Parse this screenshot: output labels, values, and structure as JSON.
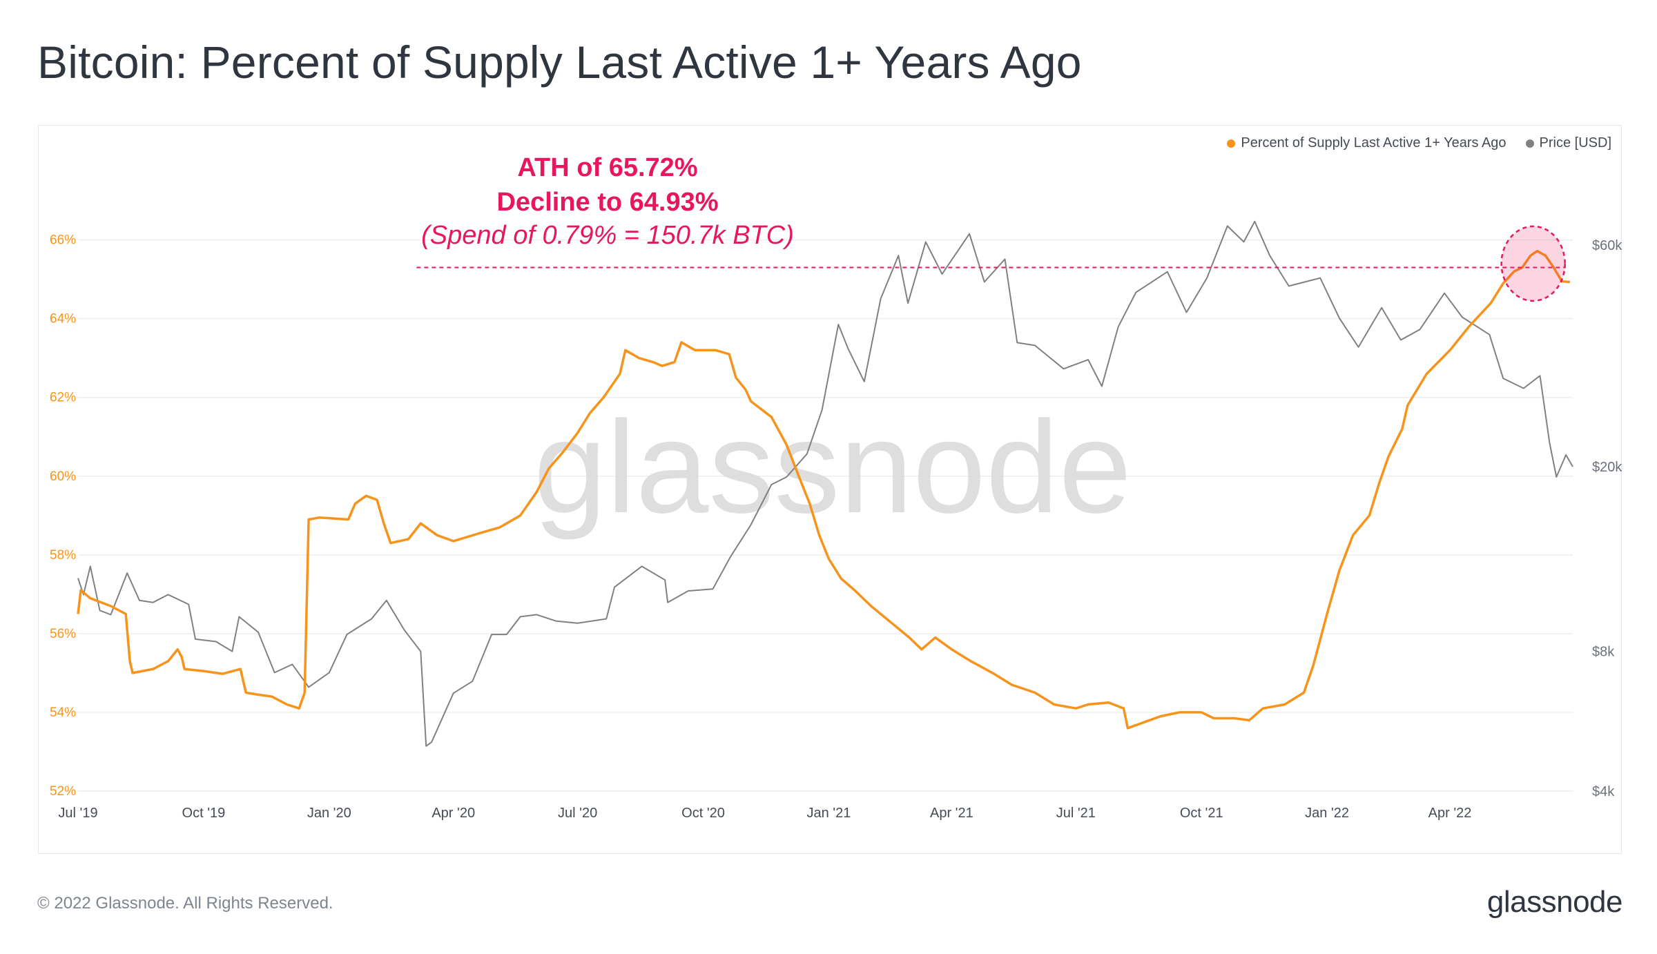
{
  "title": "Bitcoin: Percent of Supply Last Active 1+ Years Ago",
  "footer": {
    "copyright": "© 2022 Glassnode. All Rights Reserved.",
    "logo": "glassnode"
  },
  "watermark": "glassnode",
  "legend": [
    {
      "label": "Percent of Supply Last Active 1+ Years Ago",
      "color": "#f7931a"
    },
    {
      "label": "Price [USD]",
      "color": "#808080"
    }
  ],
  "annotation": {
    "line1": "ATH of 65.72%",
    "line2": "Decline to 64.93%",
    "line3": "(Spend of 0.79% = 150.7k BTC)",
    "color": "#e8175d"
  },
  "chart_data": {
    "type": "line",
    "x_type": "date",
    "xlim": [
      "2019-07-01",
      "2022-06-30"
    ],
    "x_ticks": [
      {
        "date": "2019-07-01",
        "label": "Jul '19"
      },
      {
        "date": "2019-10-01",
        "label": "Oct '19"
      },
      {
        "date": "2020-01-01",
        "label": "Jan '20"
      },
      {
        "date": "2020-04-01",
        "label": "Apr '20"
      },
      {
        "date": "2020-07-01",
        "label": "Jul '20"
      },
      {
        "date": "2020-10-01",
        "label": "Oct '20"
      },
      {
        "date": "2021-01-01",
        "label": "Jan '21"
      },
      {
        "date": "2021-04-01",
        "label": "Apr '21"
      },
      {
        "date": "2021-07-01",
        "label": "Jul '21"
      },
      {
        "date": "2021-10-01",
        "label": "Oct '21"
      },
      {
        "date": "2022-01-01",
        "label": "Jan '22"
      },
      {
        "date": "2022-04-01",
        "label": "Apr '22"
      }
    ],
    "y_left": {
      "ylim": [
        52,
        66.8
      ],
      "ticks": [
        52,
        54,
        56,
        58,
        60,
        62,
        64,
        66
      ],
      "tick_labels": [
        "52%",
        "54%",
        "56%",
        "58%",
        "60%",
        "62%",
        "64%",
        "66%"
      ],
      "color": "#f7931a"
    },
    "y_right": {
      "scale": "log",
      "ylim": [
        4000,
        72000
      ],
      "ticks": [
        4000,
        8000,
        20000,
        60000
      ],
      "tick_labels": [
        "$4k",
        "$8k",
        "$20k",
        "$60k"
      ]
    },
    "grid": true,
    "reference_line": {
      "value": 65.3,
      "style": "dashed",
      "color": "#e8175d",
      "x_start": "2020-03-05"
    },
    "highlight": {
      "center_date": "2022-06-01",
      "center_value": 65.4,
      "color": "#e8175d"
    },
    "series": [
      {
        "name": "Percent of Supply Last Active 1+ Years Ago",
        "axis": "left",
        "color": "#f7931a",
        "points": [
          [
            "2019-07-01",
            56.5
          ],
          [
            "2019-07-03",
            57.1
          ],
          [
            "2019-07-10",
            56.9
          ],
          [
            "2019-07-25",
            56.7
          ],
          [
            "2019-08-05",
            56.5
          ],
          [
            "2019-08-08",
            55.3
          ],
          [
            "2019-08-10",
            55.0
          ],
          [
            "2019-08-25",
            55.1
          ],
          [
            "2019-09-05",
            55.3
          ],
          [
            "2019-09-12",
            55.6
          ],
          [
            "2019-09-15",
            55.4
          ],
          [
            "2019-09-17",
            55.1
          ],
          [
            "2019-10-01",
            55.05
          ],
          [
            "2019-10-15",
            54.98
          ],
          [
            "2019-10-28",
            55.1
          ],
          [
            "2019-11-01",
            54.5
          ],
          [
            "2019-11-10",
            54.45
          ],
          [
            "2019-11-20",
            54.4
          ],
          [
            "2019-12-01",
            54.2
          ],
          [
            "2019-12-10",
            54.1
          ],
          [
            "2019-12-14",
            54.5
          ],
          [
            "2019-12-17",
            58.9
          ],
          [
            "2019-12-25",
            58.95
          ],
          [
            "2020-01-15",
            58.9
          ],
          [
            "2020-01-20",
            59.3
          ],
          [
            "2020-01-28",
            59.5
          ],
          [
            "2020-02-05",
            59.4
          ],
          [
            "2020-02-10",
            58.8
          ],
          [
            "2020-02-15",
            58.3
          ],
          [
            "2020-02-28",
            58.4
          ],
          [
            "2020-03-08",
            58.8
          ],
          [
            "2020-03-20",
            58.5
          ],
          [
            "2020-04-01",
            58.35
          ],
          [
            "2020-04-20",
            58.55
          ],
          [
            "2020-05-05",
            58.7
          ],
          [
            "2020-05-20",
            59.0
          ],
          [
            "2020-06-01",
            59.6
          ],
          [
            "2020-06-10",
            60.2
          ],
          [
            "2020-06-20",
            60.6
          ],
          [
            "2020-07-01",
            61.1
          ],
          [
            "2020-07-10",
            61.6
          ],
          [
            "2020-07-20",
            62.0
          ],
          [
            "2020-08-01",
            62.6
          ],
          [
            "2020-08-05",
            63.2
          ],
          [
            "2020-08-15",
            63.0
          ],
          [
            "2020-08-25",
            62.9
          ],
          [
            "2020-09-01",
            62.8
          ],
          [
            "2020-09-10",
            62.9
          ],
          [
            "2020-09-15",
            63.4
          ],
          [
            "2020-09-25",
            63.2
          ],
          [
            "2020-10-10",
            63.2
          ],
          [
            "2020-10-20",
            63.1
          ],
          [
            "2020-10-25",
            62.5
          ],
          [
            "2020-11-01",
            62.2
          ],
          [
            "2020-11-05",
            61.9
          ],
          [
            "2020-11-20",
            61.5
          ],
          [
            "2020-12-01",
            60.8
          ],
          [
            "2020-12-10",
            60.0
          ],
          [
            "2020-12-18",
            59.3
          ],
          [
            "2020-12-25",
            58.5
          ],
          [
            "2021-01-01",
            57.9
          ],
          [
            "2021-01-10",
            57.4
          ],
          [
            "2021-01-20",
            57.1
          ],
          [
            "2021-02-01",
            56.7
          ],
          [
            "2021-02-15",
            56.3
          ],
          [
            "2021-03-01",
            55.9
          ],
          [
            "2021-03-10",
            55.6
          ],
          [
            "2021-03-20",
            55.9
          ],
          [
            "2021-04-01",
            55.6
          ],
          [
            "2021-04-15",
            55.3
          ],
          [
            "2021-05-01",
            55.0
          ],
          [
            "2021-05-15",
            54.7
          ],
          [
            "2021-06-01",
            54.5
          ],
          [
            "2021-06-15",
            54.2
          ],
          [
            "2021-07-01",
            54.1
          ],
          [
            "2021-07-10",
            54.2
          ],
          [
            "2021-07-25",
            54.25
          ],
          [
            "2021-08-05",
            54.1
          ],
          [
            "2021-08-08",
            53.6
          ],
          [
            "2021-08-20",
            53.75
          ],
          [
            "2021-09-01",
            53.9
          ],
          [
            "2021-09-15",
            54.0
          ],
          [
            "2021-10-01",
            54.0
          ],
          [
            "2021-10-10",
            53.85
          ],
          [
            "2021-10-25",
            53.85
          ],
          [
            "2021-11-05",
            53.8
          ],
          [
            "2021-11-15",
            54.1
          ],
          [
            "2021-12-01",
            54.2
          ],
          [
            "2021-12-15",
            54.5
          ],
          [
            "2021-12-22",
            55.2
          ],
          [
            "2022-01-01",
            56.5
          ],
          [
            "2022-01-10",
            57.6
          ],
          [
            "2022-01-20",
            58.5
          ],
          [
            "2022-02-01",
            59.0
          ],
          [
            "2022-02-08",
            59.8
          ],
          [
            "2022-02-15",
            60.5
          ],
          [
            "2022-02-25",
            61.2
          ],
          [
            "2022-03-01",
            61.8
          ],
          [
            "2022-03-15",
            62.6
          ],
          [
            "2022-04-01",
            63.2
          ],
          [
            "2022-04-15",
            63.8
          ],
          [
            "2022-05-01",
            64.4
          ],
          [
            "2022-05-10",
            64.9
          ],
          [
            "2022-05-18",
            65.2
          ],
          [
            "2022-05-24",
            65.3
          ],
          [
            "2022-05-30",
            65.6
          ],
          [
            "2022-06-04",
            65.72
          ],
          [
            "2022-06-10",
            65.6
          ],
          [
            "2022-06-16",
            65.3
          ],
          [
            "2022-06-22",
            64.95
          ],
          [
            "2022-06-28",
            64.93
          ]
        ]
      },
      {
        "name": "Price [USD]",
        "axis": "right",
        "color": "#808080",
        "points": [
          [
            "2019-07-01",
            11500
          ],
          [
            "2019-07-05",
            10600
          ],
          [
            "2019-07-10",
            12200
          ],
          [
            "2019-07-17",
            9800
          ],
          [
            "2019-07-25",
            9600
          ],
          [
            "2019-08-06",
            11800
          ],
          [
            "2019-08-15",
            10300
          ],
          [
            "2019-08-25",
            10200
          ],
          [
            "2019-09-05",
            10600
          ],
          [
            "2019-09-20",
            10100
          ],
          [
            "2019-09-25",
            8500
          ],
          [
            "2019-10-10",
            8400
          ],
          [
            "2019-10-22",
            8000
          ],
          [
            "2019-10-27",
            9500
          ],
          [
            "2019-11-10",
            8800
          ],
          [
            "2019-11-22",
            7200
          ],
          [
            "2019-12-05",
            7500
          ],
          [
            "2019-12-17",
            6700
          ],
          [
            "2020-01-01",
            7200
          ],
          [
            "2020-01-14",
            8700
          ],
          [
            "2020-02-01",
            9400
          ],
          [
            "2020-02-12",
            10300
          ],
          [
            "2020-02-25",
            8900
          ],
          [
            "2020-03-08",
            8000
          ],
          [
            "2020-03-12",
            5000
          ],
          [
            "2020-03-16",
            5100
          ],
          [
            "2020-04-01",
            6500
          ],
          [
            "2020-04-15",
            6900
          ],
          [
            "2020-04-29",
            8700
          ],
          [
            "2020-05-10",
            8700
          ],
          [
            "2020-05-20",
            9500
          ],
          [
            "2020-06-01",
            9600
          ],
          [
            "2020-06-15",
            9300
          ],
          [
            "2020-07-01",
            9200
          ],
          [
            "2020-07-22",
            9400
          ],
          [
            "2020-07-28",
            11000
          ],
          [
            "2020-08-17",
            12200
          ],
          [
            "2020-09-03",
            11400
          ],
          [
            "2020-09-05",
            10200
          ],
          [
            "2020-09-20",
            10800
          ],
          [
            "2020-10-08",
            10900
          ],
          [
            "2020-10-21",
            12800
          ],
          [
            "2020-11-05",
            15000
          ],
          [
            "2020-11-20",
            18300
          ],
          [
            "2020-12-01",
            19000
          ],
          [
            "2020-12-16",
            21300
          ],
          [
            "2020-12-27",
            26500
          ],
          [
            "2021-01-08",
            40500
          ],
          [
            "2021-01-15",
            36000
          ],
          [
            "2021-01-27",
            30500
          ],
          [
            "2021-02-08",
            46000
          ],
          [
            "2021-02-21",
            57000
          ],
          [
            "2021-02-28",
            45000
          ],
          [
            "2021-03-13",
            61000
          ],
          [
            "2021-03-25",
            52000
          ],
          [
            "2021-04-14",
            63500
          ],
          [
            "2021-04-25",
            50000
          ],
          [
            "2021-05-10",
            56000
          ],
          [
            "2021-05-19",
            37000
          ],
          [
            "2021-06-01",
            36500
          ],
          [
            "2021-06-22",
            32500
          ],
          [
            "2021-07-10",
            34000
          ],
          [
            "2021-07-20",
            29800
          ],
          [
            "2021-08-01",
            40000
          ],
          [
            "2021-08-14",
            47500
          ],
          [
            "2021-09-06",
            52600
          ],
          [
            "2021-09-20",
            43000
          ],
          [
            "2021-10-05",
            51000
          ],
          [
            "2021-10-20",
            66000
          ],
          [
            "2021-11-01",
            61000
          ],
          [
            "2021-11-09",
            67500
          ],
          [
            "2021-11-20",
            57000
          ],
          [
            "2021-12-04",
            49000
          ],
          [
            "2021-12-27",
            51000
          ],
          [
            "2022-01-10",
            41800
          ],
          [
            "2022-01-24",
            36200
          ],
          [
            "2022-02-10",
            44000
          ],
          [
            "2022-02-24",
            37500
          ],
          [
            "2022-03-10",
            39500
          ],
          [
            "2022-03-28",
            47300
          ],
          [
            "2022-04-10",
            42000
          ],
          [
            "2022-04-30",
            38500
          ],
          [
            "2022-05-10",
            31000
          ],
          [
            "2022-05-25",
            29500
          ],
          [
            "2022-06-06",
            31400
          ],
          [
            "2022-06-13",
            22500
          ],
          [
            "2022-06-18",
            19000
          ],
          [
            "2022-06-25",
            21200
          ],
          [
            "2022-06-30",
            20000
          ]
        ]
      }
    ]
  }
}
